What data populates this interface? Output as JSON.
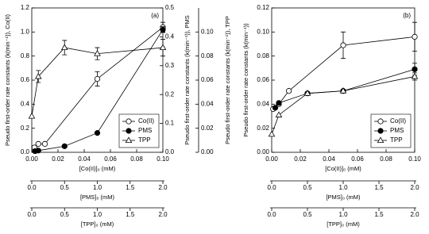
{
  "chart_data": [
    {
      "type": "line",
      "panel_label": "(a)",
      "legend": "lower right",
      "ylabel": "Pseudo first-order rate constants (k(min⁻¹)), Co(II)",
      "ylim": [
        0,
        1.2
      ],
      "yticks": [
        {
          "value": 0,
          "label": "0.0"
        },
        0.2,
        0.4,
        0.6,
        0.8,
        {
          "value": 1,
          "label": "1.0"
        },
        1.2
      ],
      "y2label": "Pseudo first-order rate constants (k(min⁻¹)), PMS",
      "y2lim": [
        0,
        0.5
      ],
      "y2ticks": [
        {
          "value": 0,
          "label": "0.0"
        },
        0.1,
        0.2,
        0.3,
        0.4,
        0.5
      ],
      "y3label": "Pseudo first-order rate constants (k(min⁻¹)), TPP",
      "y3lim": [
        0,
        0.12
      ],
      "y3ticks": [
        {
          "value": 0,
          "label": "0.00"
        },
        0.02,
        0.04,
        0.06,
        0.08,
        {
          "value": 0.1,
          "label": "0.10"
        }
      ],
      "xlabel": "[Co(II)]₀ (mM)",
      "xlim": [
        0,
        0.1
      ],
      "xticks": [
        {
          "value": 0,
          "label": "0.00"
        },
        0.02,
        0.04,
        0.06,
        0.08,
        {
          "value": 0.1,
          "label": "0.10"
        }
      ],
      "x2label": "[PMS]₀ (mM)",
      "x2lim": [
        0,
        2
      ],
      "x2ticks": [
        {
          "value": 0,
          "label": "0.0"
        },
        0.5,
        {
          "value": 1,
          "label": "1.0"
        },
        1.5,
        {
          "value": 2,
          "label": "2.0"
        }
      ],
      "x3label": "[TPP]₀ (mM)",
      "x3lim": [
        0,
        2
      ],
      "x3ticks": [
        {
          "value": 0,
          "label": "0.0"
        },
        0.5,
        {
          "value": 1,
          "label": "1.0"
        },
        1.5,
        {
          "value": 2,
          "label": "2.0"
        }
      ],
      "series": [
        {
          "name": "Co(II)",
          "color": "#000000",
          "marker": "circle-open",
          "axis": "y",
          "xaxis": "x",
          "x": [
            0.002,
            0.005,
            0.01,
            0.05,
            0.1
          ],
          "values": [
            0.04,
            0.07,
            0.07,
            0.61,
            1.04
          ],
          "errors": [
            null,
            null,
            null,
            0.06,
            0.04
          ]
        },
        {
          "name": "PMS",
          "color": "#000000",
          "marker": "circle-filled",
          "axis": "y2",
          "xaxis": "x2",
          "x": [
            0.05,
            0.1,
            0.5,
            1.0,
            2.0
          ],
          "values": [
            0.004,
            0.006,
            0.021,
            0.067,
            0.425
          ],
          "errors": [
            null,
            null,
            null,
            null,
            0.01
          ]
        },
        {
          "name": "TPP",
          "color": "#000000",
          "marker": "triangle-open",
          "axis": "y3",
          "xaxis": "x3",
          "x": [
            0,
            0.1,
            0.5,
            1.0,
            2.0
          ],
          "values": [
            0.03,
            0.063,
            0.087,
            0.082,
            0.087
          ],
          "errors": [
            null,
            0.005,
            0.006,
            0.005,
            0.007
          ]
        }
      ]
    },
    {
      "type": "line",
      "panel_label": "(b)",
      "legend": "lower right",
      "ylabel": "Pseudo first-order rate constants (k(min⁻¹))",
      "ylim": [
        0,
        0.12
      ],
      "yticks": [
        {
          "value": 0,
          "label": "0.00"
        },
        0.02,
        0.04,
        0.06,
        0.08,
        {
          "value": 0.1,
          "label": "0.10"
        },
        0.12
      ],
      "xlabel": "[Co(II)]₀ (mM)",
      "xlim": [
        0,
        0.1
      ],
      "xticks": [
        {
          "value": 0,
          "label": "0.00"
        },
        0.02,
        0.04,
        0.06,
        0.08,
        {
          "value": 0.1,
          "label": "0.10"
        }
      ],
      "x2label": "[PMS]₀ (mM)",
      "x2lim": [
        0,
        2
      ],
      "x2ticks": [
        {
          "value": 0,
          "label": "0.0"
        },
        0.5,
        {
          "value": 1,
          "label": "1.0"
        },
        1.5,
        {
          "value": 2,
          "label": "2.0"
        }
      ],
      "x3label": "[TPP]₀ (mM)",
      "x3lim": [
        0,
        2
      ],
      "x3ticks": [
        {
          "value": 0,
          "label": "0.0"
        },
        0.5,
        {
          "value": 1,
          "label": "1.0"
        },
        1.5,
        {
          "value": 2,
          "label": "2.0"
        }
      ],
      "series": [
        {
          "name": "Co(II)",
          "color": "#000000",
          "marker": "circle-open",
          "axis": "y",
          "xaxis": "x",
          "x": [
            0.001,
            0.005,
            0.012,
            0.05,
            0.1
          ],
          "values": [
            0.036,
            0.04,
            0.051,
            0.089,
            0.096
          ],
          "errors": [
            null,
            null,
            null,
            0.011,
            0.012
          ]
        },
        {
          "name": "PMS",
          "color": "#000000",
          "marker": "circle-filled",
          "axis": "y",
          "xaxis": "x2",
          "x": [
            0.05,
            0.1,
            0.5,
            1.0,
            2.0
          ],
          "values": [
            0.037,
            0.041,
            0.049,
            0.051,
            0.069
          ],
          "errors": [
            null,
            null,
            null,
            null,
            0.005
          ]
        },
        {
          "name": "TPP",
          "color": "#000000",
          "marker": "triangle-open",
          "axis": "y",
          "xaxis": "x3",
          "x": [
            0,
            0.1,
            0.5,
            1.0,
            2.0
          ],
          "values": [
            0.015,
            0.031,
            0.049,
            0.051,
            0.063
          ],
          "errors": [
            null,
            null,
            null,
            null,
            0.003
          ]
        }
      ]
    }
  ]
}
